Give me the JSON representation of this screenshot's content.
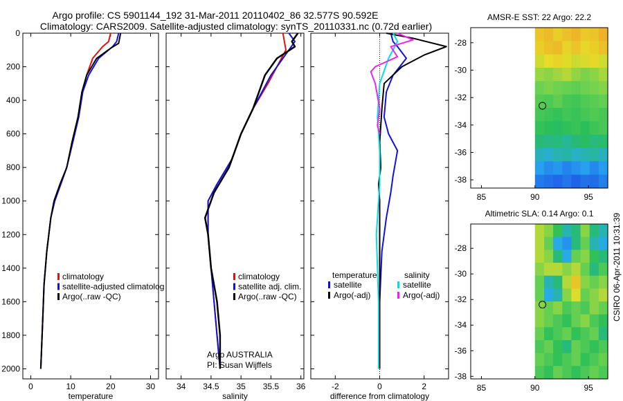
{
  "header": {
    "line1": "Argo profile: CS 5901144_192 31-Mar-2011 20110402_86 32.577S 90.592E",
    "line2": "Climatology: CARS2009. Satellite-adjusted climatology: synTS_20110331.nc (0.72d earlier)"
  },
  "colors": {
    "clim": "#e01010",
    "sat": "#1010e0",
    "argo": "#000000",
    "sat_sal": "#00e0e0",
    "argo_sal": "#f020f0"
  },
  "chart_data": [
    {
      "id": "temperature",
      "type": "line",
      "xlabel": "temperature",
      "xlim": [
        -2,
        32
      ],
      "ylim": [
        2060,
        0
      ],
      "xticks": [
        0,
        10,
        20,
        30
      ],
      "yticks": [
        0,
        200,
        400,
        600,
        800,
        1000,
        1200,
        1400,
        1600,
        1800,
        2000
      ],
      "legend": {
        "placement": "lower-middle",
        "entries": [
          "climatology",
          "satellite-adjusted climatolog",
          "Argo(..raw -QC)"
        ]
      },
      "series": [
        {
          "name": "climatology",
          "color": "clim",
          "width": 2,
          "x": [
            20.0,
            19.5,
            18.0,
            15.5,
            14.0,
            13.0,
            12.0,
            10.5,
            9.0,
            7.5,
            6.0,
            5.0,
            4.0,
            3.3,
            3.0,
            2.5
          ],
          "y": [
            0,
            50,
            80,
            150,
            250,
            350,
            500,
            650,
            800,
            900,
            1000,
            1100,
            1300,
            1500,
            1700,
            2000
          ]
        },
        {
          "name": "satellite-adjusted climatology",
          "color": "sat",
          "width": 2,
          "x": [
            22.0,
            21.5,
            20.5,
            17.0,
            14.5,
            13.0,
            12.0,
            10.5,
            9.0,
            7.5,
            6.0,
            5.0,
            4.0,
            3.3,
            3.0,
            2.5
          ],
          "y": [
            0,
            50,
            80,
            150,
            250,
            350,
            500,
            650,
            800,
            900,
            1000,
            1100,
            1300,
            1500,
            1700,
            2000
          ]
        },
        {
          "name": "Argo(..raw -QC)",
          "color": "argo",
          "width": 2,
          "x": [
            22.5,
            22.0,
            20.0,
            16.5,
            14.0,
            12.8,
            11.8,
            10.3,
            9.0,
            7.3,
            5.8,
            5.0,
            4.0,
            3.3,
            3.0,
            2.5
          ],
          "y": [
            0,
            60,
            90,
            150,
            250,
            350,
            500,
            650,
            800,
            900,
            1000,
            1100,
            1300,
            1500,
            1700,
            2000
          ]
        }
      ]
    },
    {
      "id": "salinity",
      "type": "line",
      "xlabel": "salinity",
      "xlim": [
        33.75,
        36.05
      ],
      "ylim": [
        2060,
        0
      ],
      "xticks": [
        34,
        34.5,
        35,
        35.5,
        36
      ],
      "xtick_labels": [
        "34",
        "34.5",
        "35",
        "35.5",
        "36"
      ],
      "yticks": [
        0,
        200,
        400,
        600,
        800,
        1000,
        1200,
        1400,
        1600,
        1800,
        2000
      ],
      "legend": {
        "placement": "lower-right",
        "entries": [
          "climatology",
          "satellite adj. clim.",
          "Argo(..raw -QC)"
        ]
      },
      "annotation": [
        "Argo AUSTRALIA",
        "PI: Susan Wijffels"
      ],
      "series": [
        {
          "name": "climatology",
          "color": "clim",
          "width": 2,
          "x": [
            35.7,
            35.75,
            35.6,
            35.45,
            35.2,
            35.0,
            34.85,
            34.6,
            34.45,
            34.45,
            34.5,
            34.55,
            34.6,
            34.65
          ],
          "y": [
            0,
            100,
            200,
            300,
            450,
            600,
            750,
            900,
            1000,
            1200,
            1400,
            1600,
            1800,
            2000
          ]
        },
        {
          "name": "satellite adj. clim.",
          "color": "sat",
          "width": 2,
          "x": [
            35.8,
            35.9,
            35.7,
            35.5,
            35.2,
            35.0,
            34.85,
            34.6,
            34.45,
            34.45,
            34.5,
            34.55,
            34.6,
            34.65
          ],
          "y": [
            0,
            50,
            150,
            250,
            450,
            600,
            750,
            900,
            1000,
            1200,
            1400,
            1600,
            1800,
            2000
          ]
        },
        {
          "name": "Argo(..raw -QC)",
          "color": "argo",
          "width": 2.5,
          "x": [
            35.95,
            35.85,
            35.9,
            35.6,
            35.4,
            35.2,
            35.0,
            34.8,
            34.55,
            34.4,
            34.45,
            34.5,
            34.6,
            34.65,
            34.65
          ],
          "y": [
            0,
            50,
            80,
            150,
            250,
            450,
            600,
            800,
            950,
            1100,
            1200,
            1400,
            1600,
            1800,
            2000
          ]
        }
      ]
    },
    {
      "id": "difference",
      "type": "line",
      "xlabel": "difference from climatology",
      "xlim": [
        -3.1,
        3.1
      ],
      "ylim": [
        2060,
        0
      ],
      "xticks": [
        -2,
        0,
        2
      ],
      "yticks": [
        0,
        200,
        400,
        600,
        800,
        1000,
        1200,
        1400,
        1600,
        1800,
        2000
      ],
      "legend": {
        "placement": "lower",
        "entries": [
          "temperature",
          "salinity",
          "satellite",
          "Argo(-adj)",
          "satellite",
          "Argo(-adj)"
        ]
      },
      "zero_line": 0,
      "series": [
        {
          "name": "temperature satellite",
          "color": "sat",
          "width": 2,
          "x": [
            0.5,
            0.6,
            0.8,
            1.2,
            0.6,
            0.3,
            0.2,
            0.4,
            0.8,
            0.6,
            0.5,
            0.3,
            0.1,
            0.0,
            0.0
          ],
          "y": [
            0,
            50,
            80,
            150,
            250,
            350,
            500,
            600,
            700,
            850,
            950,
            1100,
            1300,
            1600,
            2000
          ]
        },
        {
          "name": "temperature Argo(-adj)",
          "color": "argo",
          "width": 2,
          "x": [
            0.3,
            1.5,
            3.0,
            2.0,
            1.0,
            0.2,
            0.1,
            0.0,
            0.05,
            -0.05,
            0.0,
            0.0,
            0.0
          ],
          "y": [
            0,
            30,
            80,
            130,
            200,
            300,
            450,
            650,
            800,
            900,
            1000,
            1500,
            2000
          ]
        },
        {
          "name": "salinity satellite",
          "color": "sat_sal",
          "width": 2,
          "x": [
            0.6,
            0.8,
            0.4,
            0.0,
            -0.1,
            0.0,
            0.0,
            -0.05,
            -0.1,
            -0.15,
            -0.1,
            -0.05,
            -0.05
          ],
          "y": [
            0,
            50,
            150,
            300,
            500,
            700,
            900,
            1000,
            1100,
            1200,
            1400,
            1600,
            2000
          ]
        },
        {
          "name": "salinity Argo(-adj)",
          "color": "argo_sal",
          "width": 2,
          "x": [
            0.8,
            1.5,
            0.5,
            0.8,
            -0.2,
            -0.4,
            -0.2,
            0.0,
            -0.1,
            0.0
          ],
          "y": [
            0,
            40,
            80,
            140,
            200,
            230,
            300,
            450,
            550,
            600
          ]
        }
      ]
    },
    {
      "id": "amsr-sst",
      "type": "heatmap",
      "title": "AMSR-E SST: 22 Argo: 22.2",
      "xlim": [
        84,
        96.8
      ],
      "ylim": [
        -38.6,
        -26.9
      ],
      "xticks": [
        85,
        90,
        95
      ],
      "yticks": [
        -28,
        -30,
        -32,
        -34,
        -36,
        -38
      ],
      "data_lon_range": [
        90,
        96.8
      ],
      "marker": {
        "lon": 90.7,
        "lat": -32.6
      },
      "rows": [
        [
          21.8,
          22.0,
          21.6,
          21.9,
          22.1,
          21.7,
          21.8,
          22.2
        ],
        [
          21.6,
          21.9,
          22.0,
          21.5,
          21.8,
          21.4,
          21.6,
          21.9
        ],
        [
          21.0,
          21.3,
          21.5,
          21.2,
          20.9,
          21.1,
          21.4,
          21.0
        ],
        [
          20.2,
          20.0,
          20.3,
          20.6,
          20.1,
          19.8,
          20.0,
          20.4
        ],
        [
          19.5,
          19.8,
          19.6,
          19.4,
          19.2,
          19.5,
          19.7,
          19.9
        ],
        [
          19.0,
          18.8,
          19.2,
          18.7,
          18.5,
          18.9,
          19.1,
          19.3
        ],
        [
          18.6,
          18.4,
          18.2,
          18.5,
          18.3,
          18.6,
          18.9,
          18.7
        ],
        [
          18.2,
          18.0,
          17.8,
          18.1,
          18.3,
          18.0,
          18.4,
          18.6
        ],
        [
          17.6,
          17.4,
          17.5,
          17.2,
          17.6,
          17.8,
          17.5,
          17.7
        ],
        [
          16.8,
          16.6,
          16.9,
          17.0,
          16.7,
          16.9,
          17.1,
          16.8
        ],
        [
          16.0,
          15.6,
          15.8,
          15.4,
          15.7,
          16.0,
          15.5,
          15.9
        ],
        [
          15.2,
          15.0,
          14.8,
          15.1,
          14.7,
          15.0,
          14.9,
          15.3
        ]
      ],
      "color_range": [
        14.5,
        23
      ]
    },
    {
      "id": "altimetric-sla",
      "type": "heatmap",
      "title": "Altimetric SLA: 0.14 Argo: 0.1",
      "xlim": [
        84,
        96.8
      ],
      "ylim": [
        -38.2,
        -26.1
      ],
      "xticks": [
        85,
        90,
        95
      ],
      "yticks": [
        -28,
        -30,
        -32,
        -34,
        -36,
        -38
      ],
      "data_lon_range": [
        90,
        96.8
      ],
      "marker": {
        "lon": 90.7,
        "lat": -32.4
      },
      "rows": [
        [
          0.15,
          0.1,
          -0.05,
          -0.15,
          -0.1,
          0.1,
          -0.1,
          -0.15
        ],
        [
          0.15,
          0.05,
          -0.2,
          -0.25,
          -0.1,
          0.05,
          -0.15,
          -0.2
        ],
        [
          0.15,
          0.1,
          -0.1,
          -0.2,
          0.05,
          0.1,
          -0.05,
          -0.1
        ],
        [
          0.1,
          0.15,
          0.15,
          0.1,
          0.15,
          0.05,
          -0.1,
          0.0
        ],
        [
          0.05,
          -0.15,
          -0.1,
          0.15,
          0.25,
          0.1,
          0.05,
          0.1
        ],
        [
          0.05,
          -0.2,
          -0.15,
          0.1,
          0.2,
          0.05,
          0.1,
          0.15
        ],
        [
          0.1,
          0.05,
          0.1,
          0.0,
          0.05,
          0.0,
          0.1,
          0.05
        ],
        [
          0.1,
          0.05,
          0.0,
          -0.05,
          0.05,
          0.1,
          0.0,
          -0.05
        ],
        [
          0.05,
          -0.05,
          0.0,
          0.05,
          -0.05,
          0.0,
          0.05,
          -0.1
        ],
        [
          0.0,
          0.05,
          -0.05,
          -0.1,
          0.05,
          0.0,
          -0.05,
          0.0
        ],
        [
          0.05,
          0.0,
          -0.05,
          0.0,
          0.05,
          -0.05,
          0.0,
          0.05
        ],
        [
          0.0,
          -0.05,
          0.05,
          0.0,
          -0.05,
          0.0,
          0.05,
          0.0
        ]
      ],
      "color_range": [
        -0.35,
        0.35
      ]
    }
  ],
  "side_label": "CSIRO 06-Apr-2011 10:31:39"
}
